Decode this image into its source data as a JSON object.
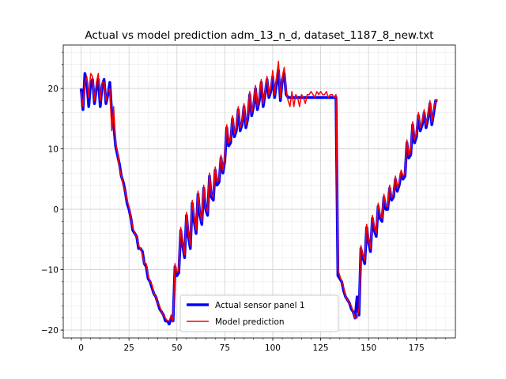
{
  "chart_data": {
    "type": "line",
    "title": "Actual vs model prediction adm_13_n_d, dataset_1187_8_new.txt",
    "x": [
      0,
      1,
      2,
      3,
      4,
      5,
      6,
      7,
      8,
      9,
      10,
      11,
      12,
      13,
      14,
      15,
      16,
      17,
      18,
      19,
      20,
      21,
      22,
      23,
      24,
      25,
      26,
      27,
      28,
      29,
      30,
      31,
      32,
      33,
      34,
      35,
      36,
      37,
      38,
      39,
      40,
      41,
      42,
      43,
      44,
      45,
      46,
      47,
      48,
      49,
      50,
      51,
      52,
      53,
      54,
      55,
      56,
      57,
      58,
      59,
      60,
      61,
      62,
      63,
      64,
      65,
      66,
      67,
      68,
      69,
      70,
      71,
      72,
      73,
      74,
      75,
      76,
      77,
      78,
      79,
      80,
      81,
      82,
      83,
      84,
      85,
      86,
      87,
      88,
      89,
      90,
      91,
      92,
      93,
      94,
      95,
      96,
      97,
      98,
      99,
      100,
      101,
      102,
      103,
      104,
      105,
      106,
      107,
      108,
      109,
      110,
      111,
      112,
      113,
      114,
      115,
      116,
      117,
      118,
      119,
      120,
      121,
      122,
      123,
      124,
      125,
      126,
      127,
      128,
      129,
      130,
      131,
      132,
      133,
      134,
      135,
      136,
      137,
      138,
      139,
      140,
      141,
      142,
      143,
      144,
      145,
      146,
      147,
      148,
      149,
      150,
      151,
      152,
      153,
      154,
      155,
      156,
      157,
      158,
      159,
      160,
      161,
      162,
      163,
      164,
      165,
      166,
      167,
      168,
      169,
      170,
      171,
      172,
      173,
      174,
      175,
      176,
      177,
      178,
      179,
      180,
      181,
      182,
      183,
      184,
      185,
      186
    ],
    "series": [
      {
        "name": "Actual sensor panel 1",
        "color": "#0000ff",
        "linewidth": 3.5,
        "values": [
          20,
          16.5,
          22.5,
          21,
          17,
          21,
          21.5,
          17.5,
          20,
          21.5,
          17,
          20.5,
          21.5,
          17.5,
          19,
          21,
          16,
          14,
          10.5,
          9,
          7.5,
          5.5,
          4.5,
          3,
          1,
          0,
          -1.5,
          -3.5,
          -4,
          -4.5,
          -6.5,
          -6.5,
          -7,
          -9,
          -9.5,
          -11.5,
          -12,
          -13,
          -14,
          -14.5,
          -15.5,
          -16.5,
          -17,
          -17.5,
          -18.5,
          -18.5,
          -19,
          -18,
          -18.5,
          -9.5,
          -11,
          -10.5,
          -3.5,
          -6,
          -8,
          -1,
          -4.5,
          -6.5,
          1,
          -2,
          -4,
          2.5,
          -1,
          -2.5,
          3.5,
          0,
          -1,
          5.5,
          2,
          1.5,
          6.5,
          4,
          4.5,
          8.5,
          6,
          8,
          13.5,
          10.5,
          11,
          15,
          12,
          13,
          16.5,
          13,
          14,
          17,
          13.5,
          15,
          19,
          15.5,
          17,
          20,
          16.5,
          18,
          21,
          17,
          19,
          21.5,
          18.5,
          19.5,
          22,
          18.5,
          21,
          23,
          18,
          21.5,
          22.5,
          19,
          18.5,
          18.5,
          18.5,
          18.5,
          18.5,
          18.5,
          18.5,
          18.5,
          18.5,
          18.5,
          18.5,
          18.5,
          18.5,
          18.5,
          18.5,
          18.5,
          18.5,
          18.5,
          18.5,
          18.5,
          18.5,
          18.5,
          18.5,
          18.5,
          18.5,
          18.5,
          -11,
          -11.5,
          -12,
          -13.5,
          -14.5,
          -15,
          -15.5,
          -16.5,
          -17,
          -18,
          -14.5,
          -17.5,
          -6.5,
          -8,
          -9,
          -3,
          -5.5,
          -7,
          -1.5,
          -3.5,
          -4.5,
          0.5,
          -1.5,
          -2,
          2,
          0,
          0,
          3.5,
          1.5,
          2,
          5,
          3,
          4,
          6,
          5,
          5.5,
          11,
          8.5,
          9,
          14,
          11,
          12,
          15.5,
          13,
          14,
          16,
          13.5,
          15,
          17.5,
          14,
          16,
          18,
          18
        ]
      },
      {
        "name": "Model prediction",
        "color": "#ff0000",
        "linewidth": 1.5,
        "values": [
          19.5,
          17,
          21,
          22,
          18.5,
          22.5,
          22,
          18,
          21,
          22.5,
          18,
          21,
          21,
          18,
          19.5,
          20,
          13,
          17,
          11,
          9.5,
          7,
          5.5,
          4,
          3,
          1.5,
          0.5,
          -1.5,
          -3,
          -4,
          -4.5,
          -6,
          -6.5,
          -7.5,
          -9,
          -9,
          -11,
          -12,
          -12.5,
          -14,
          -14.5,
          -15.5,
          -16,
          -17,
          -17.5,
          -18,
          -18.5,
          -18.5,
          -17.5,
          -18.5,
          -9,
          -10.5,
          -10,
          -3,
          -5.5,
          -7.5,
          -0.5,
          -4,
          -6,
          1.5,
          -1.5,
          -3.5,
          3,
          -0.5,
          -2,
          4,
          0.5,
          -0.5,
          6,
          2.5,
          2,
          7,
          4.5,
          5,
          9,
          6.5,
          8.5,
          14,
          11,
          11.5,
          15.5,
          12.5,
          13.5,
          17,
          13.5,
          14.5,
          17.5,
          14,
          15.5,
          19.5,
          16,
          17.5,
          20.5,
          17,
          18.5,
          21.5,
          17.5,
          19.5,
          22,
          19,
          20,
          23,
          19,
          22,
          24.5,
          18.5,
          22,
          23.5,
          19.5,
          18,
          17,
          19.5,
          17,
          19,
          18.5,
          17,
          19,
          18.5,
          17.5,
          19,
          19,
          19.5,
          19,
          18.5,
          19.5,
          19,
          19.5,
          19,
          19,
          19.5,
          18.5,
          19,
          19,
          18.5,
          19,
          -10,
          -11,
          -12,
          -13,
          -14.5,
          -15,
          -15.5,
          -16,
          -17,
          -18,
          -18,
          -16.5,
          -6,
          -7.5,
          -8.5,
          -2.5,
          -5,
          -6.5,
          -1,
          -3,
          -4,
          1,
          -1,
          -1.5,
          2.5,
          0.5,
          0.5,
          4,
          2,
          2.5,
          5.5,
          3.5,
          4.5,
          6.5,
          5.5,
          6,
          11.5,
          9,
          9.5,
          14.5,
          11.5,
          12.5,
          16,
          13.5,
          14.5,
          16.5,
          14,
          15.5,
          18,
          14.5,
          16.5,
          18,
          18
        ]
      }
    ],
    "xlim": [
      -9.3,
      195.3
    ],
    "ylim": [
      -21.3,
      27.2
    ],
    "xticks": [
      0,
      25,
      50,
      75,
      100,
      125,
      150,
      175
    ],
    "yticks": [
      {
        "value": -20,
        "label": "−20"
      },
      {
        "value": -10,
        "label": "−10"
      },
      0,
      10,
      20
    ],
    "xminorticks": [
      -5,
      5,
      10,
      15,
      20,
      30,
      35,
      40,
      45,
      55,
      60,
      65,
      70,
      80,
      85,
      90,
      95,
      105,
      110,
      115,
      120,
      130,
      135,
      140,
      145,
      155,
      160,
      165,
      170,
      180,
      185,
      190
    ],
    "yminorticks": [
      -20,
      -18,
      -16,
      -14,
      -12,
      -10,
      -8,
      -6,
      -4,
      -2,
      0,
      2,
      4,
      6,
      8,
      10,
      12,
      14,
      16,
      18,
      20,
      22,
      24,
      26
    ],
    "grid": true,
    "minor_grid": true,
    "legend": "lower center"
  }
}
